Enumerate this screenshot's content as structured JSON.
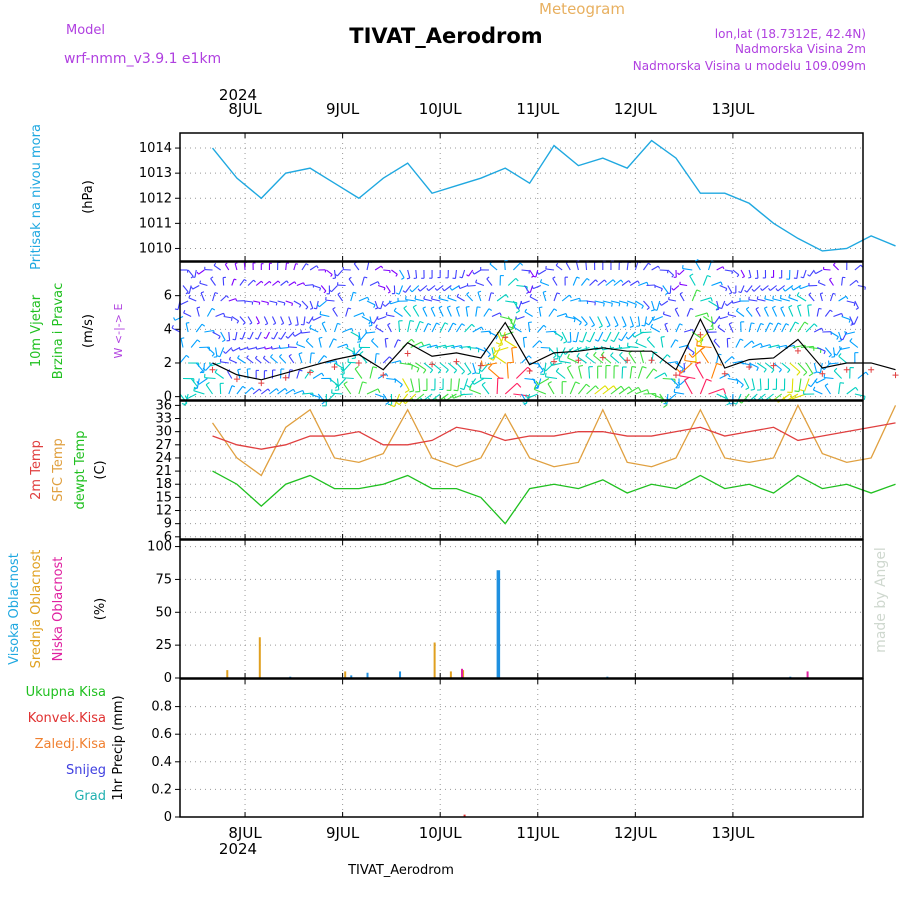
{
  "header": {
    "title": "TIVAT_Aerodrom",
    "subtitle": "Meteogram",
    "model_label": "Model",
    "model_name": "wrf-nmm_v3.9.1  e1km",
    "lonlat": "lon,lat (18.7312E, 42.4N)",
    "altitude": "Nadmorska Visina 2m",
    "model_altitude": "Nadmorska Visina u modelu 109.099m",
    "year": "2024",
    "footer_title": "TIVAT_Aerodrom",
    "credit": "made by Angel"
  },
  "colors": {
    "pressure": "#1fa8e0",
    "temp2m": "#e04040",
    "sfc": "#e0a040",
    "dewpt": "#20c020",
    "wind_speed": "#000000",
    "cloud_high": "#1f90e0",
    "cloud_mid": "#e0a020",
    "cloud_low": "#e020a0",
    "header_purple": "#b040e0",
    "subtitle_orange": "#e8b060"
  },
  "chart_data": [
    {
      "type": "line",
      "panel": "pressure",
      "ylabel": [
        "Pritisak na nivou mora",
        "(hPa)"
      ],
      "ylim": [
        1009.5,
        1014.6
      ],
      "yticks": [
        1010,
        1011,
        1012,
        1013,
        1014
      ],
      "xticks": [
        "8JUL",
        "9JUL",
        "10JUL",
        "11JUL",
        "12JUL",
        "13JUL"
      ],
      "x_hours": [
        0,
        6,
        12,
        18,
        24,
        30,
        36,
        42,
        48,
        54,
        60,
        66,
        72,
        78,
        84,
        90,
        96,
        102,
        108,
        114,
        120,
        126,
        132,
        138,
        144,
        150,
        156,
        162,
        168
      ],
      "series": [
        {
          "name": "Pritisak na nivou mora",
          "values": [
            1014.0,
            1012.8,
            1012.0,
            1013.0,
            1013.2,
            1012.6,
            1012.0,
            1012.8,
            1013.4,
            1012.2,
            1012.5,
            1012.8,
            1013.2,
            1012.6,
            1014.1,
            1013.3,
            1013.6,
            1013.2,
            1014.3,
            1013.6,
            1012.2,
            1012.2,
            1011.8,
            1011.0,
            1010.4,
            1009.9,
            1010.0,
            1010.5,
            1010.1
          ]
        }
      ]
    },
    {
      "type": "line",
      "panel": "wind",
      "ylabel": [
        "10m Vjetar",
        "Brzina i Pravac",
        "(m/s)"
      ],
      "compass": "W <-|-> E",
      "ylim": [
        -0.2,
        8
      ],
      "yticks": [
        0,
        2,
        4,
        6
      ],
      "series": [
        {
          "name": "Brzina",
          "values": [
            2.0,
            1.3,
            1.0,
            1.4,
            1.8,
            2.2,
            2.5,
            1.6,
            3.2,
            2.4,
            2.6,
            2.3,
            4.4,
            1.9,
            2.6,
            2.7,
            2.9,
            2.7,
            2.7,
            1.6,
            4.6,
            1.7,
            2.2,
            2.3,
            3.4,
            1.7,
            2.0,
            2.0,
            1.6
          ]
        }
      ]
    },
    {
      "type": "line",
      "panel": "temperature",
      "ylabel": [
        "2m Temp",
        "SFC Temp",
        "dewpt Temp",
        "(C)"
      ],
      "ylim": [
        5.5,
        37
      ],
      "yticks": [
        6,
        9,
        12,
        15,
        18,
        21,
        24,
        27,
        30,
        33,
        36
      ],
      "series": [
        {
          "name": "2m Temp",
          "values": [
            29,
            27,
            26,
            27,
            29,
            29,
            30,
            27,
            27,
            28,
            31,
            30,
            28,
            29,
            29,
            30,
            30,
            29,
            29,
            30,
            31,
            29,
            30,
            31,
            28,
            29,
            30,
            31,
            32
          ]
        },
        {
          "name": "SFC Temp",
          "values": [
            32,
            24,
            20,
            31,
            35,
            24,
            23,
            25,
            35,
            24,
            22,
            24,
            34,
            24,
            22,
            23,
            35,
            23,
            22,
            24,
            35,
            24,
            23,
            24,
            36,
            25,
            23,
            24,
            36
          ]
        },
        {
          "name": "dewpt Temp",
          "values": [
            21,
            18,
            13,
            18,
            20,
            17,
            17,
            18,
            20,
            17,
            17,
            15,
            9,
            17,
            18,
            17,
            19,
            16,
            18,
            17,
            20,
            17,
            18,
            16,
            20,
            17,
            18,
            16,
            18
          ]
        }
      ]
    },
    {
      "type": "bar",
      "panel": "clouds",
      "ylabel": [
        "Visoka Oblacnost",
        "Srednja Oblacnost",
        "Niska Oblacnost",
        "(%)"
      ],
      "ylim": [
        0,
        105
      ],
      "yticks": [
        0,
        25,
        50,
        75,
        100
      ],
      "series": [
        {
          "name": "Visoka Oblacnost",
          "points": [
            [
              19,
              1
            ],
            [
              34,
              2
            ],
            [
              38,
              4
            ],
            [
              46,
              5
            ],
            [
              70,
              82
            ],
            [
              97,
              1
            ],
            [
              142,
              1
            ]
          ]
        },
        {
          "name": "Srednja Oblacnost",
          "points": [
            [
              4,
              6
            ],
            [
              12,
              31
            ],
            [
              33,
              5
            ],
            [
              55,
              27
            ],
            [
              59,
              5
            ],
            [
              62,
              6
            ]
          ]
        },
        {
          "name": "Niska Oblacnost",
          "points": [
            [
              61,
              7
            ],
            [
              146,
              5
            ]
          ]
        }
      ]
    },
    {
      "type": "bar",
      "panel": "precip",
      "ylabel": [
        "Ukupna Kisa",
        "Konvek.Kisa",
        "Zaledj.Kisa",
        "Snijeg",
        "Grad",
        "1hr Precip (mm)"
      ],
      "legend_colors": [
        "#20c020",
        "#e03030",
        "#f08030",
        "#4040e0",
        "#20b0b0"
      ],
      "ylim": [
        0,
        1
      ],
      "yticks": [
        0,
        0.2,
        0.4,
        0.6,
        0.8
      ],
      "series": [
        {
          "name": "Konvek.Kisa",
          "points": [
            [
              62,
              0.01
            ]
          ]
        }
      ]
    }
  ]
}
